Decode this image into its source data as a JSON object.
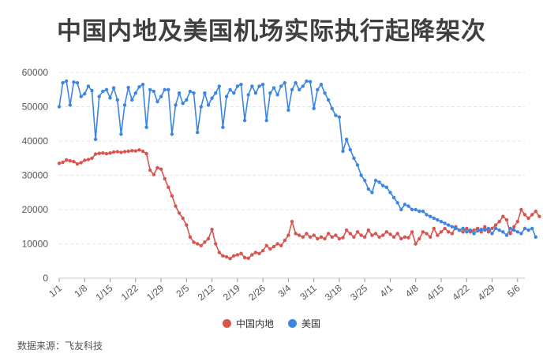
{
  "title": "中国内地及美国机场实际执行起降架次",
  "source": "数据来源：飞友科技",
  "chart_data": {
    "type": "line",
    "title": "中国内地及美国机场实际执行起降架次",
    "ylim": [
      0,
      60000
    ],
    "yticks": [
      0,
      10000,
      20000,
      30000,
      40000,
      50000,
      60000
    ],
    "xlim": [
      0,
      128
    ],
    "xtick_labels": [
      "1/1",
      "1/8",
      "1/15",
      "1/22",
      "1/29",
      "2/5",
      "2/12",
      "2/19",
      "2/26",
      "3/4",
      "3/11",
      "3/18",
      "3/25",
      "4/1",
      "4/8",
      "4/15",
      "4/22",
      "4/29",
      "5/6"
    ],
    "xtick_positions": [
      0,
      7,
      14,
      21,
      28,
      35,
      42,
      49,
      56,
      63,
      70,
      77,
      84,
      91,
      98,
      105,
      112,
      119,
      126
    ],
    "grid": "horizontal dashed",
    "legend_position": "bottom",
    "series": [
      {
        "name": "中国内地",
        "color": "#d9534f",
        "values": [
          33500,
          33800,
          34500,
          34200,
          34000,
          33300,
          33700,
          34400,
          34600,
          35000,
          36200,
          36400,
          36500,
          36300,
          36500,
          36800,
          36900,
          36700,
          36900,
          37000,
          37200,
          37100,
          37400,
          37000,
          36300,
          31500,
          30200,
          32200,
          31800,
          29000,
          26500,
          24000,
          21000,
          19000,
          17500,
          15500,
          12000,
          10500,
          10000,
          9500,
          10500,
          11500,
          14200,
          10000,
          7500,
          6500,
          6200,
          5700,
          6500,
          6800,
          7200,
          6000,
          5800,
          6800,
          7500,
          7200,
          8000,
          9500,
          8500,
          9200,
          10000,
          9500,
          11000,
          12500,
          16500,
          13000,
          12500,
          12000,
          13000,
          12000,
          12500,
          11500,
          12000,
          11500,
          13000,
          12000,
          12500,
          11500,
          11800,
          14000,
          13000,
          12000,
          13500,
          12500,
          12000,
          14000,
          12500,
          13000,
          12000,
          12500,
          13500,
          12800,
          12000,
          13000,
          11500,
          12000,
          11800,
          13500,
          10000,
          11500,
          13500,
          13000,
          12000,
          14500,
          12500,
          13500,
          14500,
          13500,
          13000,
          15000,
          14000,
          13500,
          14500,
          13500,
          14000,
          14500,
          13500,
          15000,
          13500,
          14500,
          15500,
          16500,
          18000,
          17000,
          13000,
          15000,
          16500,
          20000,
          18500,
          17500,
          18500,
          19500,
          18000
        ]
      },
      {
        "name": "美国",
        "color": "#3b86e3",
        "values": [
          50000,
          57000,
          57500,
          50500,
          57200,
          57000,
          53000,
          53800,
          56000,
          54700,
          40500,
          53000,
          54500,
          55000,
          52600,
          55500,
          52000,
          42000,
          50500,
          55600,
          52000,
          54000,
          55800,
          56500,
          44000,
          55000,
          54500,
          51500,
          53000,
          55000,
          55000,
          42000,
          50500,
          54000,
          51000,
          52000,
          54500,
          54000,
          42500,
          50000,
          54000,
          50500,
          52500,
          54000,
          56000,
          44000,
          53000,
          55000,
          54000,
          56000,
          56500,
          46000,
          53500,
          56000,
          54000,
          56000,
          56500,
          46000,
          54000,
          55500,
          53500,
          56000,
          57000,
          49000,
          55000,
          57000,
          55000,
          56000,
          57500,
          57300,
          49500,
          55000,
          56500,
          54000,
          52000,
          49500,
          47500,
          47000,
          37000,
          40500,
          37500,
          35000,
          33000,
          30000,
          28500,
          26000,
          25000,
          28500,
          28000,
          27000,
          26500,
          25000,
          23500,
          22000,
          20000,
          21500,
          21000,
          20000,
          20000,
          19500,
          19500,
          18500,
          18000,
          17500,
          17000,
          16500,
          16000,
          15500,
          15000,
          14500,
          14000,
          14500,
          13500,
          14000,
          13000,
          13800,
          14200,
          14000,
          14500,
          13000,
          14500,
          14000,
          13500,
          12500,
          14500,
          14000,
          13500,
          13000,
          14500,
          14000,
          14500,
          12000
        ]
      }
    ]
  }
}
